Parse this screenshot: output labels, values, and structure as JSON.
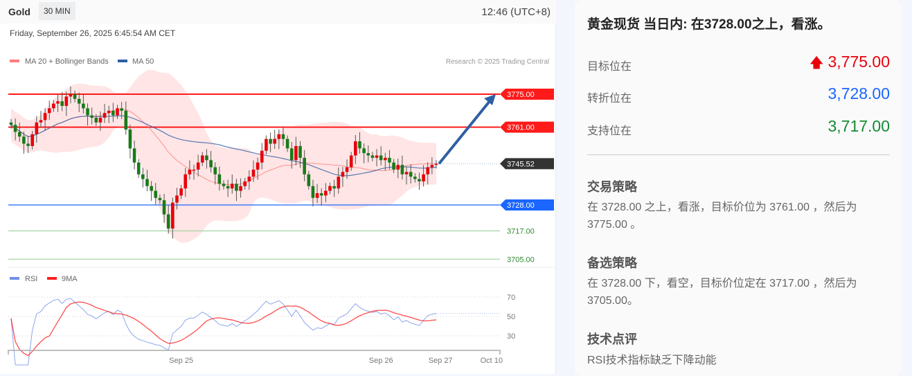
{
  "header": {
    "symbol": "Gold",
    "timeframe": "30 MIN",
    "clock": "12:46 (UTC+8)",
    "date": "Friday, September 26, 2025 6:45:54 AM CET"
  },
  "legend": {
    "ma20": "MA 20 + Bollinger Bands",
    "ma50": "MA 50",
    "watermark": "Research © 2025 Trading Central",
    "rsi": "RSI",
    "rsi_ma": "9MA"
  },
  "colors": {
    "up": "#e8000b",
    "down": "#1a7a1a",
    "ma20": "#ff7b7b",
    "ma50": "#2f5fa3",
    "band": "#ffe1e1",
    "resistance": "#ff1a1a",
    "pivot": "#1a66ff",
    "support": "#a9d6a9",
    "last": "#333333",
    "rsi": "#6f8fe8",
    "rsi_ma": "#ff2020",
    "arrow": "#2f5fa3"
  },
  "chart_data": {
    "type": "candlestick",
    "closes": [
      3762,
      3759,
      3757,
      3754,
      3753,
      3758,
      3763,
      3764,
      3767,
      3769,
      3771,
      3772,
      3770,
      3774,
      3775,
      3773,
      3771,
      3769,
      3766,
      3765,
      3763,
      3765,
      3767,
      3768,
      3766,
      3769,
      3768,
      3760,
      3752,
      3746,
      3741,
      3739,
      3736,
      3734,
      3731,
      3730,
      3724,
      3718,
      3729,
      3732,
      3735,
      3741,
      3743,
      3743,
      3746,
      3749,
      3747,
      3744,
      3741,
      3737,
      3736,
      3735,
      3737,
      3734,
      3736,
      3738,
      3740,
      3743,
      3746,
      3751,
      3756,
      3754,
      3756,
      3758,
      3756,
      3752,
      3747,
      3753,
      3748,
      3741,
      3736,
      3731,
      3733,
      3732,
      3734,
      3736,
      3735,
      3740,
      3742,
      3744,
      3749,
      3755,
      3752,
      3750,
      3749,
      3748,
      3749,
      3747,
      3748,
      3746,
      3743,
      3745,
      3741,
      3742,
      3740,
      3739,
      3738,
      3741,
      3744,
      3745,
      3745.52
    ],
    "levels": [
      {
        "label": "3775.00",
        "value": 3775,
        "kind": "resistance"
      },
      {
        "label": "3761.00",
        "value": 3761,
        "kind": "resistance"
      },
      {
        "label": "3745.52",
        "value": 3745.52,
        "kind": "last"
      },
      {
        "label": "3728.00",
        "value": 3728,
        "kind": "pivot"
      },
      {
        "label": "3717.00",
        "value": 3717,
        "kind": "support"
      },
      {
        "label": "3705.00",
        "value": 3705,
        "kind": "support"
      }
    ],
    "rsi_ticks": [
      {
        "label": "70",
        "value": 70
      },
      {
        "label": "50",
        "value": 50
      },
      {
        "label": "30",
        "value": 30
      }
    ],
    "x_ticks": [
      {
        "label": "Sep 25",
        "index": 40
      },
      {
        "label": "Sep 26",
        "index": 87
      },
      {
        "label": "Sep 27",
        "index": 101
      },
      {
        "label": "Oct 10",
        "index": 113
      }
    ],
    "forecast_target": 3775
  },
  "panel": {
    "title": "黄金现货 当日内: 在3728.00之上，看涨。",
    "levels": [
      {
        "label": "目标位在",
        "value": "3,775.00",
        "color": "#e8000b",
        "icon": "arrow-up-icon"
      },
      {
        "label": "转折位在",
        "value": "3,728.00",
        "color": "#1a66ff"
      },
      {
        "label": "支持位在",
        "value": "3,717.00",
        "color": "#138a36"
      }
    ],
    "sections": [
      {
        "heading": "交易策略",
        "text": "在 3728.00 之上，看涨，目标价位为 3761.00 ，然后为 3775.00 。"
      },
      {
        "heading": "备选策略",
        "text": "在 3728.00 下，看空，目标价位定在 3717.00 ，然后为 3705.00。"
      },
      {
        "heading": "技术点评",
        "text": "RSI技术指标缺乏下降动能"
      }
    ]
  }
}
